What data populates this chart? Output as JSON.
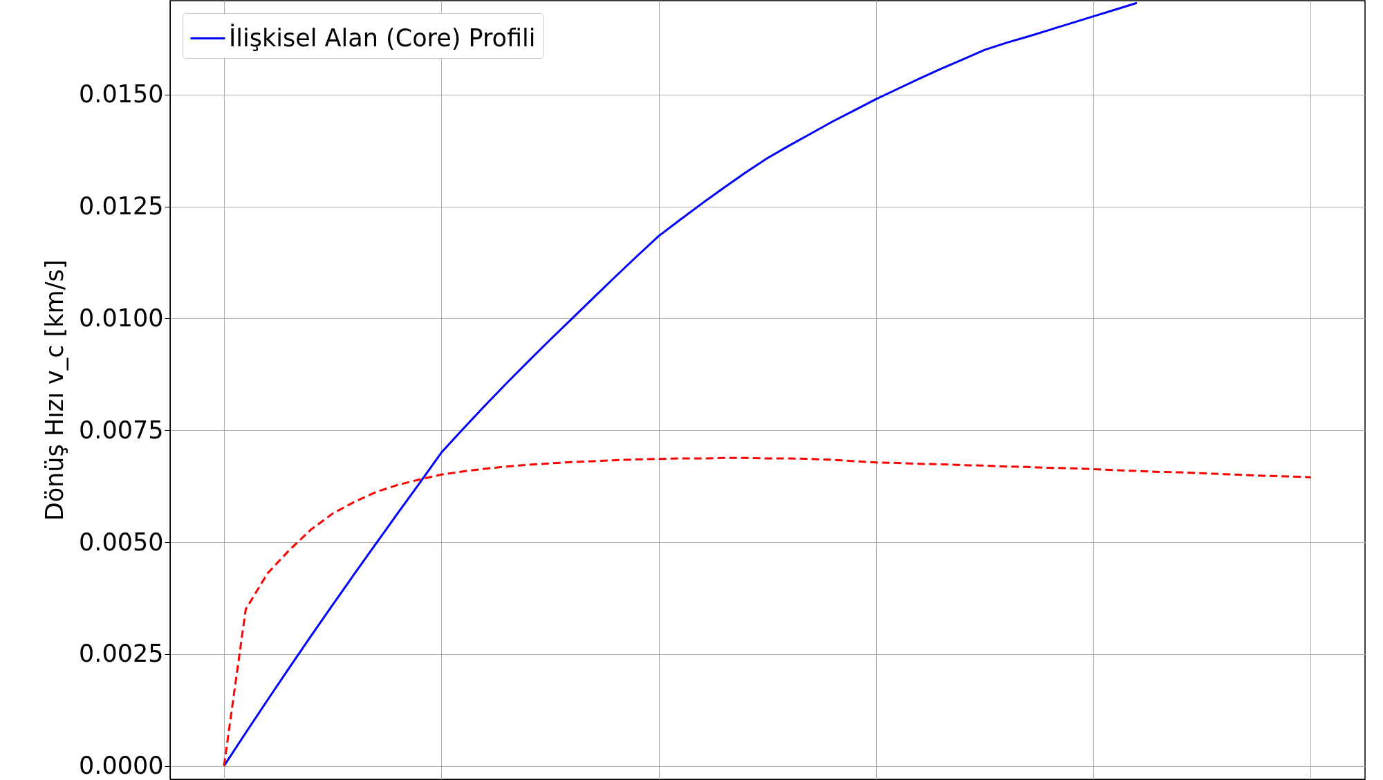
{
  "chart_data": {
    "type": "line",
    "ylabel": "Dönüş Hızı v_c [km/s]",
    "legend": "top left",
    "grid": true,
    "tick_labels": "y",
    "categories": [
      null,
      null,
      null,
      null,
      null,
      null,
      null,
      null,
      null,
      null,
      null,
      null,
      null,
      null,
      null,
      null,
      null,
      null,
      null,
      null,
      null,
      null,
      null,
      null,
      null,
      null,
      null,
      null,
      null,
      null,
      null,
      null,
      null,
      null,
      null,
      null,
      null,
      null,
      null,
      null,
      null,
      null,
      null,
      null,
      null,
      null,
      null,
      null,
      null,
      null,
      null
    ],
    "ylim": [
      -0.0003,
      0.0171
    ],
    "yticks": [
      {
        "value": 0,
        "label": "0.0000"
      },
      {
        "value": 0.0025,
        "label": "0.0025"
      },
      {
        "value": 0.005,
        "label": "0.0050"
      },
      {
        "value": 0.0075,
        "label": "0.0075"
      },
      {
        "value": 0.01,
        "label": "0.0100"
      },
      {
        "value": 0.0125,
        "label": "0.0125"
      },
      {
        "value": 0.015,
        "label": "0.0150"
      }
    ],
    "series": [
      {
        "name": "İlişkisel Alan (Core) Profili",
        "color": "#0000ff",
        "line_style": "solid",
        "values": [
          0,
          0.00074,
          0.00147,
          0.00219,
          0.0029,
          0.0036,
          0.00429,
          0.00497,
          0.00565,
          0.00632,
          0.007,
          0.00753,
          0.00805,
          0.00855,
          0.00904,
          0.00952,
          0.00999,
          0.01046,
          0.01093,
          0.01139,
          0.01184,
          0.01221,
          0.01257,
          0.01292,
          0.01326,
          0.01358,
          0.01386,
          0.01413,
          0.0144,
          0.01465,
          0.0149,
          0.01513,
          0.01536,
          0.01558,
          0.01579,
          0.016,
          0.01616,
          0.0163,
          0.01645,
          0.0166,
          0.01675,
          0.0169,
          0.01705,
          null,
          null,
          null,
          null,
          null,
          null,
          null,
          null
        ]
      },
      {
        "color": "#ff0000",
        "line_style": "dashed",
        "values": [
          0,
          0.0035,
          0.0043,
          0.00482,
          0.00528,
          0.00564,
          0.0059,
          0.00612,
          0.00628,
          0.0064,
          0.00651,
          0.00658,
          0.00664,
          0.00669,
          0.00673,
          0.00676,
          0.00679,
          0.00681,
          0.00683,
          0.00685,
          0.00686,
          0.00687,
          0.00687,
          0.00688,
          0.00688,
          0.00687,
          0.00687,
          0.00686,
          0.00684,
          0.00681,
          0.00678,
          0.00677,
          0.00675,
          0.00674,
          0.00672,
          0.00671,
          0.00669,
          0.00668,
          0.00666,
          0.00665,
          0.00663,
          0.00661,
          0.00659,
          0.00657,
          0.00656,
          0.00654,
          0.00652,
          0.0065,
          0.00648,
          0.00647,
          0.00645
        ]
      }
    ]
  }
}
